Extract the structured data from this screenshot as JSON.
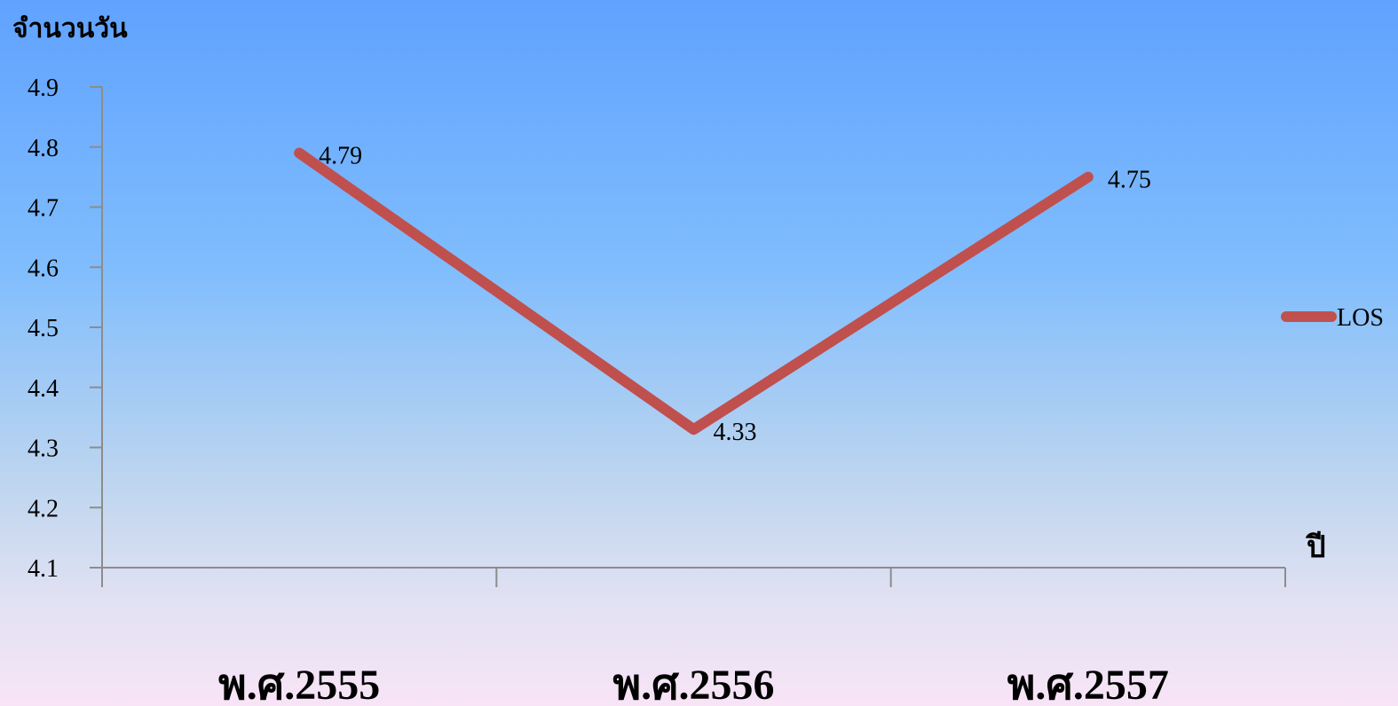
{
  "chart_data": {
    "type": "line",
    "title": "",
    "ylabel": "จำนวนวัน",
    "xlabel": "ปี",
    "categories": [
      "พ.ศ.2555",
      "พ.ศ.2556",
      "พ.ศ.2557"
    ],
    "series": [
      {
        "name": "LOS",
        "values": [
          4.79,
          4.33,
          4.75
        ],
        "color": "#c0504d"
      }
    ],
    "ylim": [
      4.1,
      4.9
    ],
    "yticks": [
      "4.1",
      "4.2",
      "4.3",
      "4.4",
      "4.5",
      "4.6",
      "4.7",
      "4.8",
      "4.9"
    ],
    "data_labels": [
      "4.79",
      "4.33",
      "4.75"
    ],
    "grid": false,
    "legend": "right"
  },
  "colors": {
    "series": "#c0504d",
    "axis": "#8c8c8c",
    "text": "#000000"
  }
}
